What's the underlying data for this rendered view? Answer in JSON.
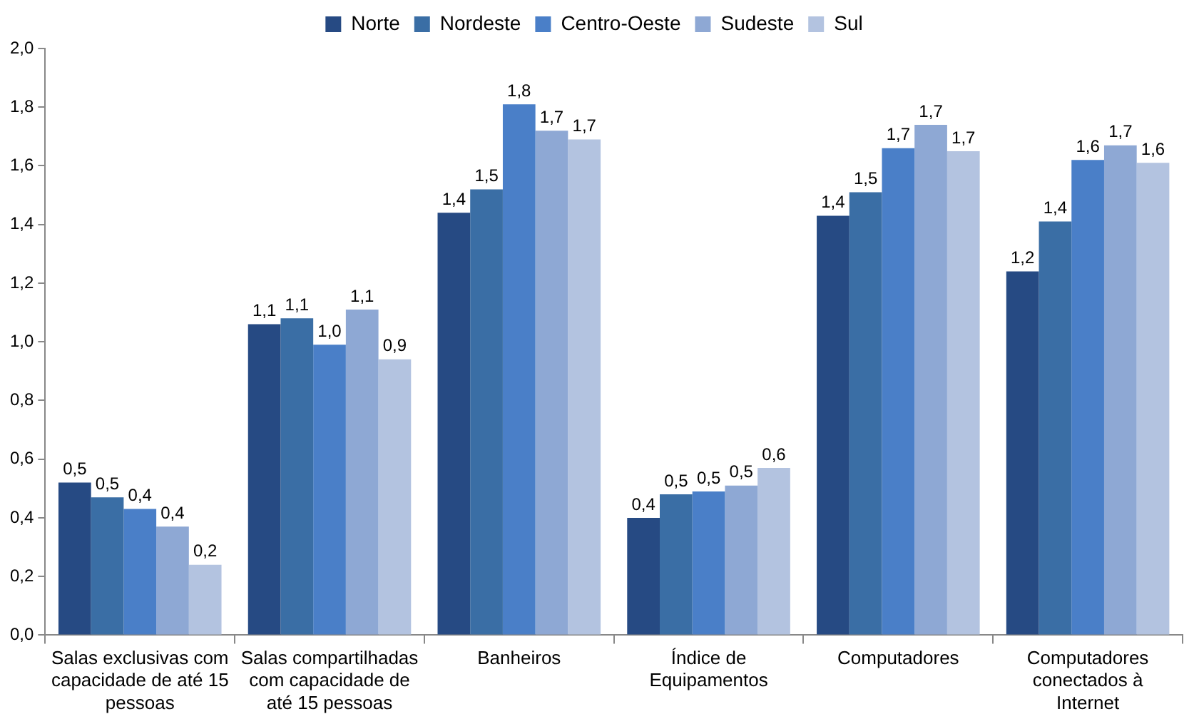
{
  "chart_data": {
    "type": "bar",
    "categories": [
      "Salas exclusivas com capacidade de até 15 pessoas",
      "Salas compartilhadas com capacidade de até 15 pessoas",
      "Banheiros",
      "Índice de Equipamentos",
      "Computadores",
      "Computadores conectados à Internet"
    ],
    "series": [
      {
        "name": "Norte",
        "color": "#264a83",
        "values": [
          0.52,
          1.06,
          1.44,
          0.4,
          1.43,
          1.24
        ],
        "value_labels": [
          "0,5",
          "1,1",
          "1,4",
          "0,4",
          "1,4",
          "1,2"
        ]
      },
      {
        "name": "Nordeste",
        "color": "#3a6ea5",
        "values": [
          0.47,
          1.08,
          1.52,
          0.48,
          1.51,
          1.41
        ],
        "value_labels": [
          "0,5",
          "1,1",
          "1,5",
          "0,5",
          "1,5",
          "1,4"
        ]
      },
      {
        "name": "Centro-Oeste",
        "color": "#4a7fc8",
        "values": [
          0.43,
          0.99,
          1.81,
          0.49,
          1.66,
          1.62
        ],
        "value_labels": [
          "0,4",
          "1,0",
          "1,8",
          "0,5",
          "1,7",
          "1,6"
        ]
      },
      {
        "name": "Sudeste",
        "color": "#8ea8d4",
        "values": [
          0.37,
          1.11,
          1.72,
          0.51,
          1.74,
          1.67
        ],
        "value_labels": [
          "0,4",
          "1,1",
          "1,7",
          "0,5",
          "1,7",
          "1,7"
        ]
      },
      {
        "name": "Sul",
        "color": "#b3c3e0",
        "values": [
          0.24,
          0.94,
          1.69,
          0.57,
          1.65,
          1.61
        ],
        "value_labels": [
          "0,2",
          "0,9",
          "1,7",
          "0,6",
          "1,7",
          "1,6"
        ]
      }
    ],
    "ylim": [
      0,
      2
    ],
    "yticks": [
      {
        "value": 0,
        "label": "0,0"
      },
      {
        "value": 0.2,
        "label": "0,2"
      },
      {
        "value": 0.4,
        "label": "0,4"
      },
      {
        "value": 0.6,
        "label": "0,6"
      },
      {
        "value": 0.8,
        "label": "0,8"
      },
      {
        "value": 1,
        "label": "1,0"
      },
      {
        "value": 1.2,
        "label": "1,2"
      },
      {
        "value": 1.4,
        "label": "1,4"
      },
      {
        "value": 1.6,
        "label": "1,6"
      },
      {
        "value": 1.8,
        "label": "1,8"
      },
      {
        "value": 2,
        "label": "2,0"
      }
    ],
    "legend": "top"
  }
}
